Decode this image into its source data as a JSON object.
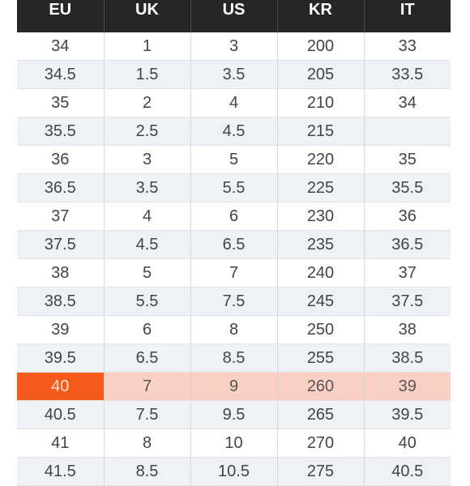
{
  "colors": {
    "header_bg": "#262626",
    "header_text": "#ffffff",
    "row_alt_bg": "#eef1f5",
    "highlight_row_bg": "#fbd0c4",
    "highlight_cell_bg": "#f55a1d"
  },
  "table": {
    "headers": [
      "EU",
      "UK",
      "US",
      "KR",
      "IT"
    ],
    "highlighted_row_index": 12,
    "rows": [
      [
        "34",
        "1",
        "3",
        "200",
        "33"
      ],
      [
        "34.5",
        "1.5",
        "3.5",
        "205",
        "33.5"
      ],
      [
        "35",
        "2",
        "4",
        "210",
        "34"
      ],
      [
        "35.5",
        "2.5",
        "4.5",
        "215",
        ""
      ],
      [
        "36",
        "3",
        "5",
        "220",
        "35"
      ],
      [
        "36.5",
        "3.5",
        "5.5",
        "225",
        "35.5"
      ],
      [
        "37",
        "4",
        "6",
        "230",
        "36"
      ],
      [
        "37.5",
        "4.5",
        "6.5",
        "235",
        "36.5"
      ],
      [
        "38",
        "5",
        "7",
        "240",
        "37"
      ],
      [
        "38.5",
        "5.5",
        "7.5",
        "245",
        "37.5"
      ],
      [
        "39",
        "6",
        "8",
        "250",
        "38"
      ],
      [
        "39.5",
        "6.5",
        "8.5",
        "255",
        "38.5"
      ],
      [
        "40",
        "7",
        "9",
        "260",
        "39"
      ],
      [
        "40.5",
        "7.5",
        "9.5",
        "265",
        "39.5"
      ],
      [
        "41",
        "8",
        "10",
        "270",
        "40"
      ],
      [
        "41.5",
        "8.5",
        "10.5",
        "275",
        "40.5"
      ]
    ]
  }
}
